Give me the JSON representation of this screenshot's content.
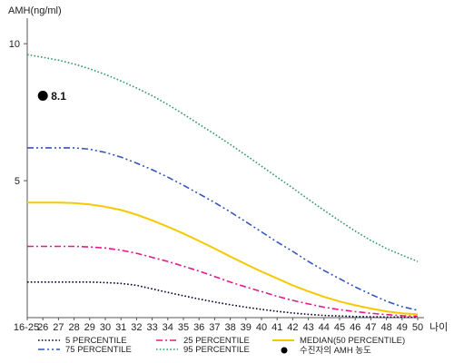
{
  "chart_data": {
    "type": "line",
    "ylabel": "AMH(ng/ml)",
    "xlabel": "나이",
    "x_categories": [
      "16-25",
      "26",
      "27",
      "28",
      "29",
      "30",
      "31",
      "32",
      "33",
      "34",
      "35",
      "36",
      "37",
      "38",
      "39",
      "40",
      "41",
      "42",
      "43",
      "44",
      "45",
      "46",
      "47",
      "48",
      "49",
      "50"
    ],
    "y_ticks": [
      5,
      10
    ],
    "ylim": [
      0,
      10.8
    ],
    "grid": false,
    "series": [
      {
        "name": "5 PERCENTILE",
        "color": "#000033",
        "dash": "dotted",
        "values": [
          1.3,
          1.3,
          1.3,
          1.3,
          1.3,
          1.28,
          1.25,
          1.18,
          1.05,
          0.92,
          0.8,
          0.68,
          0.57,
          0.47,
          0.38,
          0.3,
          0.23,
          0.17,
          0.12,
          0.08,
          0.06,
          0.04,
          0.03,
          0.02,
          0.015,
          0.01
        ]
      },
      {
        "name": "25 PERCENTILE",
        "color": "#e6198c",
        "dash": "dashdot",
        "values": [
          2.6,
          2.6,
          2.6,
          2.6,
          2.58,
          2.54,
          2.46,
          2.35,
          2.2,
          2.05,
          1.88,
          1.7,
          1.5,
          1.3,
          1.12,
          0.95,
          0.78,
          0.63,
          0.5,
          0.38,
          0.29,
          0.22,
          0.16,
          0.11,
          0.07,
          0.05
        ]
      },
      {
        "name": "MEDIAN(50 PERCENTILE)",
        "color": "#f5c900",
        "dash": "solid",
        "values": [
          4.2,
          4.2,
          4.2,
          4.18,
          4.13,
          4.05,
          3.93,
          3.76,
          3.55,
          3.32,
          3.07,
          2.8,
          2.52,
          2.23,
          1.95,
          1.68,
          1.43,
          1.18,
          0.96,
          0.76,
          0.59,
          0.45,
          0.33,
          0.23,
          0.16,
          0.12
        ]
      },
      {
        "name": "75 PERCENTILE",
        "color": "#3355bb",
        "dash": "dashdotdot",
        "values": [
          6.2,
          6.2,
          6.2,
          6.2,
          6.15,
          6.03,
          5.86,
          5.64,
          5.4,
          5.13,
          4.83,
          4.52,
          4.2,
          3.86,
          3.5,
          3.13,
          2.76,
          2.42,
          2.05,
          1.72,
          1.42,
          1.12,
          0.85,
          0.6,
          0.4,
          0.27
        ]
      },
      {
        "name": "95 PERCENTILE",
        "color": "#339966",
        "dash": "dotted",
        "values": [
          9.6,
          9.5,
          9.4,
          9.26,
          9.08,
          8.88,
          8.64,
          8.38,
          8.1,
          7.78,
          7.43,
          7.06,
          6.7,
          6.32,
          5.93,
          5.53,
          5.13,
          4.73,
          4.32,
          3.92,
          3.53,
          3.16,
          2.82,
          2.52,
          2.28,
          2.05
        ]
      }
    ],
    "annotation": {
      "name": "수진자의 AMH 농도",
      "x": "26",
      "y": 8.1,
      "label": "8.1"
    }
  }
}
